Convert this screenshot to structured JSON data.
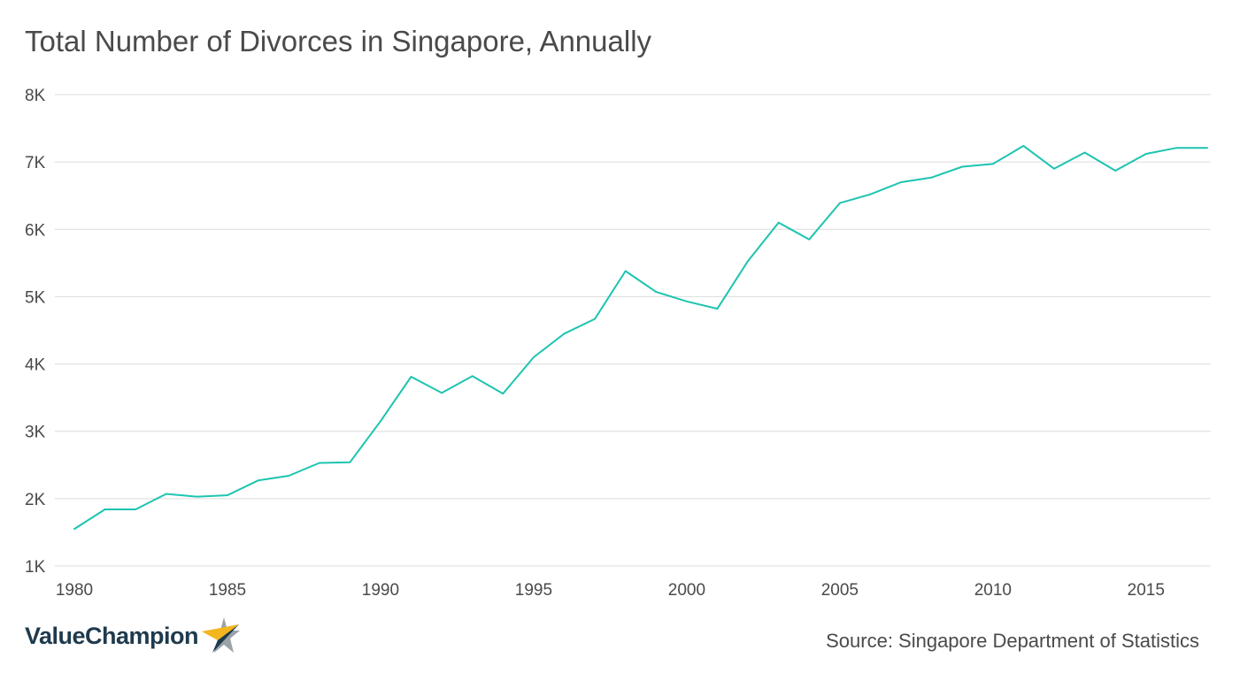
{
  "header": {
    "title": "Total Number of Divorces in Singapore, Annually"
  },
  "footer": {
    "brand": "ValueChampion",
    "brand_icon": "star-icon",
    "source": "Source: Singapore Department of Statistics"
  },
  "colors": {
    "line": "#1dc4b0",
    "grid": "#dcdcdc",
    "axis_text": "#4a4a4a",
    "brand_navy": "#1f3a4d",
    "star_gold": "#f3b61f",
    "star_grey": "#9aa3a8"
  },
  "chart_data": {
    "type": "line",
    "title": "Total Number of Divorces in Singapore, Annually",
    "xlabel": "",
    "ylabel": "",
    "xlim": [
      1980,
      2017
    ],
    "ylim": [
      1000,
      8000
    ],
    "x_ticks": [
      1980,
      1985,
      1990,
      1995,
      2000,
      2005,
      2010,
      2015
    ],
    "x_tick_labels": [
      "1980",
      "1985",
      "1990",
      "1995",
      "2000",
      "2005",
      "2010",
      "2015"
    ],
    "y_ticks": [
      1000,
      2000,
      3000,
      4000,
      5000,
      6000,
      7000,
      8000
    ],
    "y_tick_labels": [
      "1K",
      "2K",
      "3K",
      "4K",
      "5K",
      "6K",
      "7K",
      "8K"
    ],
    "grid": "horizontal",
    "legend": "none",
    "series": [
      {
        "x": [
          1980,
          1981,
          1982,
          1983,
          1984,
          1985,
          1986,
          1987,
          1988,
          1989,
          1990,
          1991,
          1992,
          1993,
          1994,
          1995,
          1996,
          1997,
          1998,
          1999,
          2000,
          2001,
          2002,
          2003,
          2004,
          2005,
          2006,
          2007,
          2008,
          2009,
          2010,
          2011,
          2012,
          2013,
          2014,
          2015,
          2016,
          2017
        ],
        "values": [
          1550,
          1840,
          1840,
          2070,
          2030,
          2050,
          2270,
          2340,
          2530,
          2540,
          3150,
          3810,
          3570,
          3820,
          3560,
          4100,
          4450,
          4670,
          5380,
          5070,
          4930,
          4820,
          5530,
          6100,
          5850,
          6390,
          6520,
          6700,
          6770,
          6930,
          6970,
          7240,
          6900,
          7140,
          6870,
          7120,
          7210,
          7210
        ]
      }
    ]
  }
}
